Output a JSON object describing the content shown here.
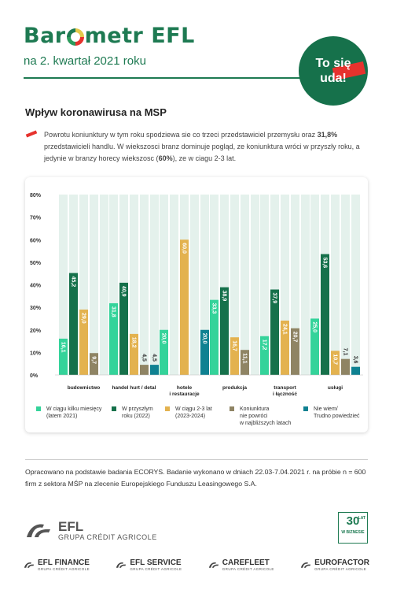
{
  "header": {
    "brand_part1": "Bar",
    "brand_part2": "metr EFL",
    "subtitle": "na 2. kwartał 2021 roku",
    "badge_line1": "To się",
    "badge_line2": "uda!"
  },
  "section_title": "Wpływ koronawirusa na MSP",
  "intro": {
    "text_before": "Powrotu koniunktury w tym roku spodziewa sie co trzeci przedstawiciel przemysłu oraz ",
    "highlight_1": "31,8%",
    "text_middle": " przedstawicieli handlu. W wiekszosci branz dominuje pogląd, ze koniunktura wróci w przyszły roku, a jedynie w branzy horecy wiekszosc (",
    "highlight_2": "60%",
    "text_after": "), ze w ciagu 2-3 lat."
  },
  "colors": {
    "brand_green": "#1e7a52",
    "accent_red": "#e6322d",
    "column_bg": "#e4f1ec"
  },
  "chart_data": {
    "type": "bar",
    "categories": [
      [
        "budownictwo"
      ],
      [
        "handel hurt / detal"
      ],
      [
        "hotele",
        "i restauracje"
      ],
      [
        "produkcja"
      ],
      [
        "transport",
        "i łączność"
      ],
      [
        "usługi"
      ]
    ],
    "series": [
      {
        "name": "W ciągu kilku miesięcy (latem 2021)",
        "color": "#34d39a",
        "values": [
          16.1,
          31.8,
          20.0,
          33.3,
          17.2,
          25.0
        ]
      },
      {
        "name": "W przyszłym roku (2022)",
        "color": "#16714b",
        "values": [
          45.2,
          40.9,
          0,
          38.9,
          37.9,
          53.6
        ]
      },
      {
        "name": "W ciągu 2-3 lat (2023-2024)",
        "color": "#e3b24f",
        "values": [
          29.0,
          18.2,
          60.0,
          16.7,
          24.1,
          10.7
        ]
      },
      {
        "name": "Koniunktura nie powróci w najbliższych latach",
        "color": "#8f8464",
        "values": [
          9.7,
          4.5,
          0,
          11.1,
          20.7,
          7.1
        ]
      },
      {
        "name": "Nie wiem/ Trudno powiedzieć",
        "color": "#0f8191",
        "values": [
          0,
          4.5,
          20.0,
          0,
          0,
          3.6
        ]
      }
    ],
    "value_labels": [
      [
        "16,1",
        "45,2",
        "29,0",
        "9,7",
        ""
      ],
      [
        "31,8",
        "40,9",
        "18,2",
        "4,5",
        "4,5"
      ],
      [
        "20,0",
        "",
        "60,0",
        "",
        "20,0"
      ],
      [
        "33,3",
        "38,9",
        "16,7",
        "11,1",
        ""
      ],
      [
        "17,2",
        "37,9",
        "24,1",
        "20,7",
        ""
      ],
      [
        "25,0",
        "53,6",
        "10,7",
        "7,1",
        "3,6"
      ]
    ],
    "yticks": [
      "80%",
      "70%",
      "60%",
      "50%",
      "40%",
      "30%",
      "20%",
      "10%",
      "0%"
    ],
    "ylim": [
      0,
      80
    ],
    "legend_position": "bottom",
    "grid": false
  },
  "legend": [
    {
      "line1": "W ciągu kilku miesięcy",
      "line2": "(latem 2021)",
      "line3": ""
    },
    {
      "line1": "W przyszłym",
      "line2": "roku (2022)",
      "line3": ""
    },
    {
      "line1": "W ciągu 2-3 lat",
      "line2": "(2023-2024)",
      "line3": ""
    },
    {
      "line1": "Koniunktura",
      "line2": "nie powróci",
      "line3": "w najbliższych latach"
    },
    {
      "line1": "Nie wiem/",
      "line2": "Trudno powiedzieć",
      "line3": ""
    }
  ],
  "source": "Opracowano na podstawie badania ECORYS. Badanie wykonano w dniach 22.03-7.04.2021 r. na próbie n = 600 firm z sektora MŚP na zlecenie Europejskiego Funduszu Leasingowego S.A.",
  "efl_logo": {
    "name": "EFL",
    "group": "GRUPA CRÉDIT AGRICOLE"
  },
  "anniversary": {
    "number": "30",
    "lat": "LAT",
    "sub": "W BIZNESIE"
  },
  "footer_brands": [
    {
      "name": "EFL FINANCE",
      "group": "GRUPA CRÉDIT AGRICOLE"
    },
    {
      "name": "EFL SERVICE",
      "group": "GRUPA CRÉDIT AGRICOLE"
    },
    {
      "name": "CAREFLEET",
      "group": "GRUPA CRÉDIT AGRICOLE"
    },
    {
      "name": "EUROFACTOR",
      "group": "GRUPA CRÉDIT AGRICOLE"
    }
  ]
}
